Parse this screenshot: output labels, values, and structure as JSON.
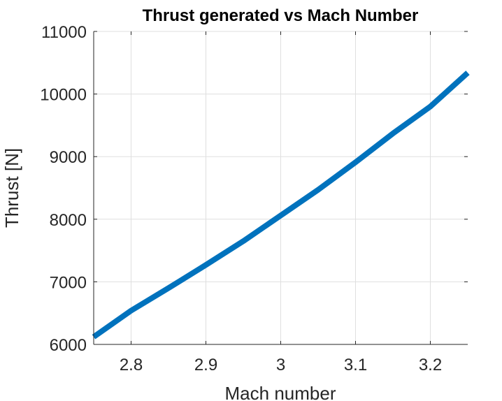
{
  "chart_data": {
    "type": "line",
    "title": "Thrust generated vs Mach Number",
    "xlabel": "Mach number",
    "ylabel": "Thrust [N]",
    "xlim": [
      2.75,
      3.25
    ],
    "ylim": [
      6000,
      11000
    ],
    "xticks": [
      2.8,
      2.9,
      3.0,
      3.1,
      3.2
    ],
    "xtick_labels": [
      "2.8",
      "2.9",
      "3",
      "3.1",
      "3.2"
    ],
    "yticks": [
      6000,
      7000,
      8000,
      9000,
      10000,
      11000
    ],
    "ytick_labels": [
      "6000",
      "7000",
      "8000",
      "9000",
      "10000",
      "11000"
    ],
    "grid": true,
    "series": [
      {
        "color": "#0072BD",
        "x": [
          2.75,
          2.8,
          2.85,
          2.9,
          2.95,
          3.0,
          3.05,
          3.1,
          3.15,
          3.2,
          3.25
        ],
        "y": [
          6120,
          6540,
          6900,
          7270,
          7650,
          8060,
          8470,
          8910,
          9370,
          9800,
          10340
        ]
      }
    ]
  }
}
